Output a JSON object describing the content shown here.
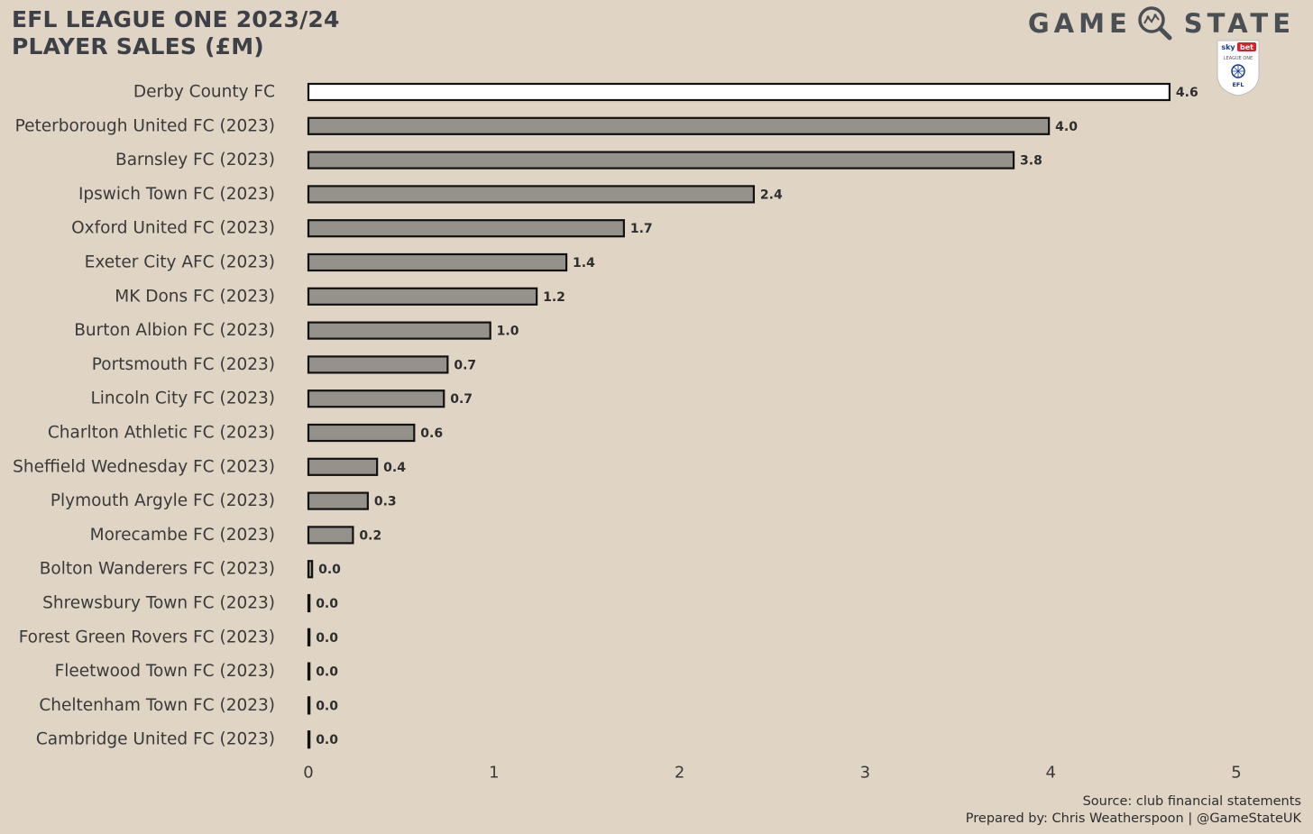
{
  "header": {
    "title_line1": "EFL LEAGUE ONE 2023/24",
    "title_line2": "PLAYER SALES (£M)",
    "brand_left": "GAME",
    "brand_right": "STATE",
    "badge_sky": "sky",
    "badge_bet": "bet",
    "badge_league": "LEAGUE ONE",
    "badge_efl": "EFL"
  },
  "footer": {
    "source": "Source: club financial statements",
    "prepared": "Prepared by: Chris Weatherspoon | @GameStateUK"
  },
  "colors": {
    "background": "#e0d4c4",
    "bar_default": "#95928b",
    "bar_highlight": "#ffffff",
    "bar_outline": "#111111",
    "text": "#3a3a3a"
  },
  "chart_data": {
    "type": "bar",
    "orientation": "horizontal",
    "categories": [
      "Derby County FC",
      "Peterborough United FC (2023)",
      "Barnsley FC (2023)",
      "Ipswich Town FC (2023)",
      "Oxford United FC (2023)",
      "Exeter City AFC (2023)",
      "MK Dons FC (2023)",
      "Burton Albion FC (2023)",
      "Portsmouth FC (2023)",
      "Lincoln City FC (2023)",
      "Charlton Athletic FC (2023)",
      "Sheffield Wednesday FC (2023)",
      "Plymouth Argyle FC (2023)",
      "Morecambe FC (2023)",
      "Bolton Wanderers FC (2023)",
      "Shrewsbury Town FC (2023)",
      "Forest Green Rovers FC (2023)",
      "Fleetwood Town FC (2023)",
      "Cheltenham Town FC (2023)",
      "Cambridge United FC (2023)"
    ],
    "values": [
      4.64,
      3.99,
      3.8,
      2.4,
      1.7,
      1.39,
      1.23,
      0.98,
      0.75,
      0.73,
      0.57,
      0.37,
      0.32,
      0.24,
      0.02,
      0.005,
      0.005,
      0.005,
      0.005,
      0.005
    ],
    "labels": [
      "4.6",
      "4.0",
      "3.8",
      "2.4",
      "1.7",
      "1.4",
      "1.2",
      "1.0",
      "0.7",
      "0.7",
      "0.6",
      "0.4",
      "0.3",
      "0.2",
      "0.0",
      "0.0",
      "0.0",
      "0.0",
      "0.0",
      "0.0"
    ],
    "highlight": "Derby County FC",
    "xlim": [
      0,
      5
    ],
    "xticks": [
      "0",
      "1",
      "2",
      "3",
      "4",
      "5"
    ],
    "grid": false,
    "xlabel": "",
    "ylabel": ""
  }
}
